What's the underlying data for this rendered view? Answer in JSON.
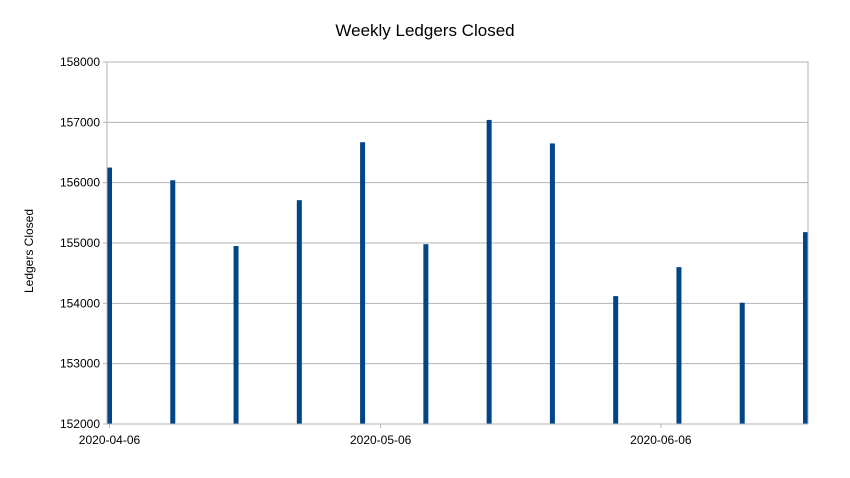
{
  "chart_data": {
    "type": "bar",
    "title": "Weekly Ledgers Closed",
    "xlabel": "",
    "ylabel": "Ledgers Closed",
    "ylim": [
      152000,
      158000
    ],
    "y_ticks": [
      "152000",
      "153000",
      "154000",
      "155000",
      "156000",
      "157000",
      "158000"
    ],
    "x_range_days": [
      0,
      77
    ],
    "x_ticks": [
      {
        "label": "2020-04-06",
        "day": 0
      },
      {
        "label": "2020-05-06",
        "day": 30
      },
      {
        "label": "2020-06-06",
        "day": 61
      }
    ],
    "series": [
      {
        "name": "Ledgers Closed",
        "color": "#004586",
        "points": [
          {
            "date": "2020-04-06",
            "day": 0,
            "value": 156250
          },
          {
            "date": "2020-04-13",
            "day": 7,
            "value": 156040
          },
          {
            "date": "2020-04-20",
            "day": 14,
            "value": 154950
          },
          {
            "date": "2020-04-27",
            "day": 21,
            "value": 155710
          },
          {
            "date": "2020-05-04",
            "day": 28,
            "value": 156670
          },
          {
            "date": "2020-05-11",
            "day": 35,
            "value": 154980
          },
          {
            "date": "2020-05-18",
            "day": 42,
            "value": 157040
          },
          {
            "date": "2020-05-25",
            "day": 49,
            "value": 156650
          },
          {
            "date": "2020-06-01",
            "day": 56,
            "value": 154120
          },
          {
            "date": "2020-06-08",
            "day": 63,
            "value": 154600
          },
          {
            "date": "2020-06-15",
            "day": 70,
            "value": 154010
          },
          {
            "date": "2020-06-22",
            "day": 77,
            "value": 155180
          }
        ]
      }
    ],
    "grid": true,
    "legend": "none"
  }
}
